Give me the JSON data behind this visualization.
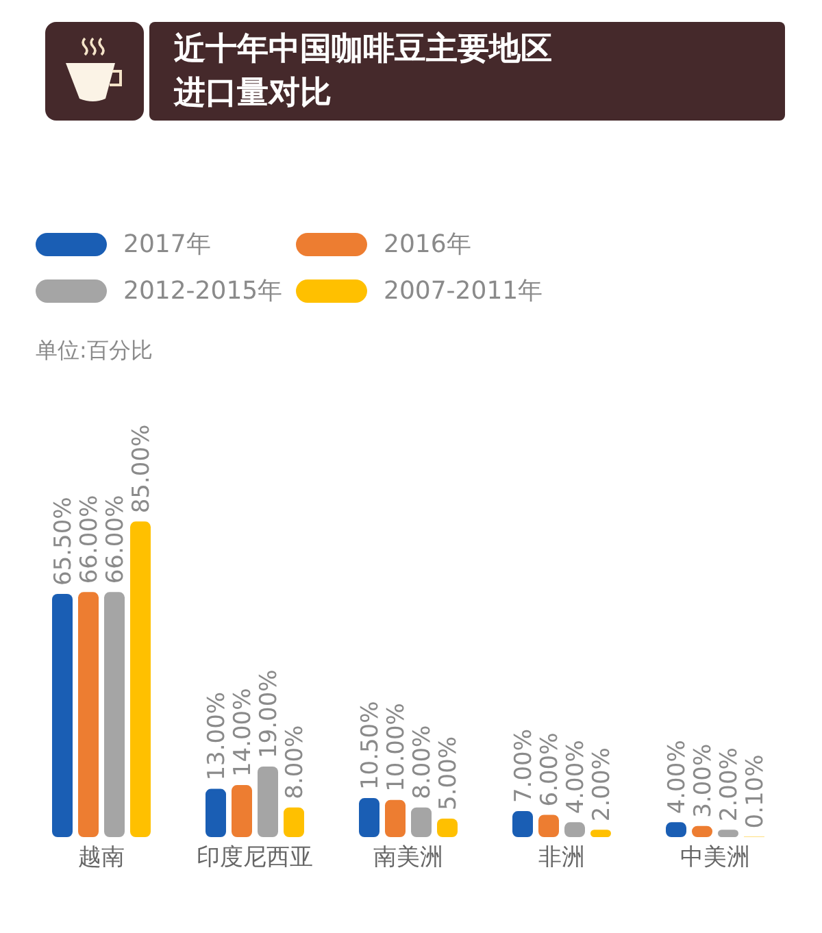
{
  "chart_data": {
    "type": "bar",
    "title": "近十年中国咖啡豆主要地区进口量对比",
    "annotations": [
      "单位:百分比"
    ],
    "categories": [
      "越南",
      "印度尼西亚",
      "南美洲",
      "非洲",
      "中美洲"
    ],
    "legend": "top left",
    "series": [
      {
        "name": "2017年",
        "color": "#1a5eb4",
        "values": [
          65.5,
          13,
          10.5,
          7,
          4
        ],
        "value_labels": [
          "65.50%",
          "13.00%",
          "10.50%",
          "7.00%",
          "4.00%"
        ]
      },
      {
        "name": "2016年",
        "color": "#ed7d31",
        "values": [
          66,
          14,
          10,
          6,
          3
        ],
        "value_labels": [
          "66.00%",
          "14.00%",
          "10.00%",
          "6.00%",
          "3.00%"
        ]
      },
      {
        "name": "2012-2015年",
        "color": "#a5a5a5",
        "values": [
          66,
          19,
          8,
          4,
          2
        ],
        "value_labels": [
          "66.00%",
          "19.00%",
          "8.00%",
          "4.00%",
          "2.00%"
        ]
      },
      {
        "name": "2007-2011年",
        "color": "#ffc000",
        "values": [
          85,
          8,
          5,
          2,
          0.1
        ],
        "value_labels": [
          "85.00%",
          "8.00%",
          "5.00%",
          "2.00%",
          "0.10%"
        ]
      }
    ]
  }
}
